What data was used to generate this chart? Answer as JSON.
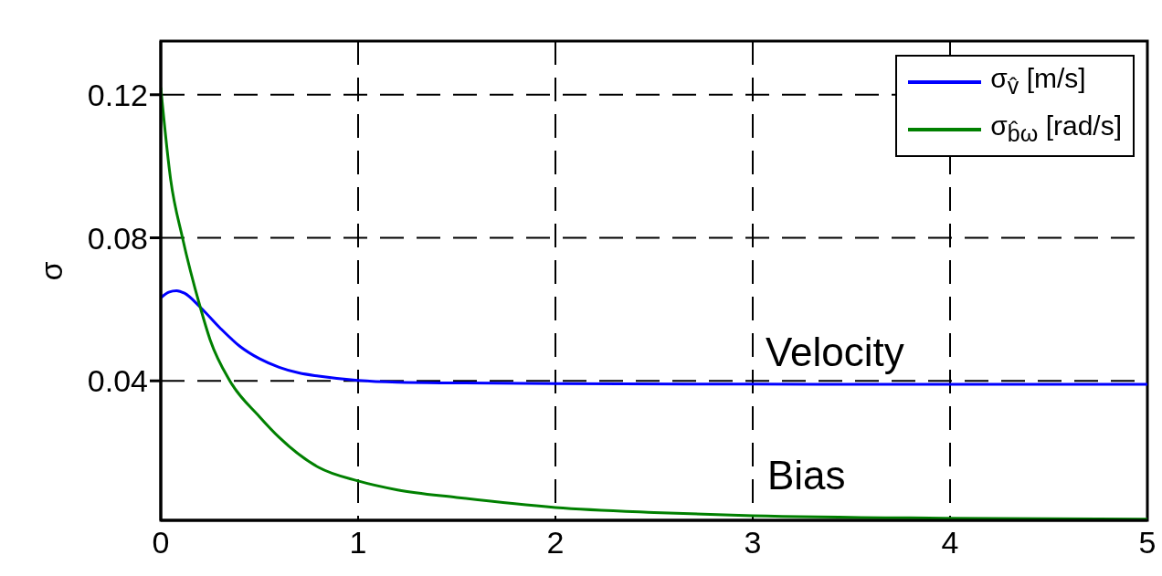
{
  "chart_data": {
    "type": "line",
    "ylabel": "σ",
    "series": [
      {
        "name": "σ$_{v̂}$  [m/s]",
        "color": "#0000ff",
        "x": [
          0,
          0.04,
          0.08,
          0.12,
          0.2,
          0.3,
          0.4,
          0.5,
          0.6,
          0.7,
          0.8,
          1,
          1.2,
          1.5,
          2,
          3,
          4,
          5
        ],
        "values": [
          0.0632,
          0.0648,
          0.0652,
          0.0645,
          0.0606,
          0.0548,
          0.0497,
          0.0462,
          0.0438,
          0.0422,
          0.0413,
          0.0401,
          0.0396,
          0.0394,
          0.0392,
          0.0391,
          0.039,
          0.039
        ]
      },
      {
        "name": "σ$_{b̂ω}$  [rad/s]",
        "color": "#008000",
        "x": [
          0,
          0.05,
          0.11,
          0.2,
          0.25,
          0.35,
          0.5,
          0.6,
          0.8,
          1,
          1.2,
          1.5,
          2,
          2.5,
          3,
          4,
          5
        ],
        "values": [
          0.122,
          0.0963,
          0.08,
          0.0606,
          0.0515,
          0.04,
          0.03,
          0.0242,
          0.0158,
          0.012,
          0.0095,
          0.0074,
          0.0046,
          0.0032,
          0.0023,
          0.0016,
          0.0013
        ]
      }
    ],
    "annotations": [
      "Velocity",
      "Bias"
    ],
    "xlim": [
      0,
      5
    ],
    "xticks": [
      0,
      1,
      2,
      3,
      4,
      5
    ],
    "ylim": [
      0.001,
      0.135
    ],
    "yticks": [
      0.04,
      0.08,
      0.12
    ],
    "grid": true,
    "legend": "top right",
    "line_style": "solid",
    "marker": "none"
  }
}
